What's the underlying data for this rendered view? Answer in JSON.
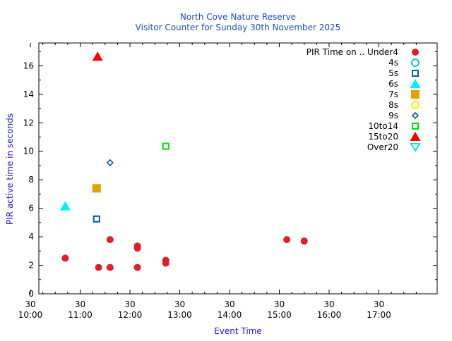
{
  "chart_data": {
    "type": "scatter",
    "title": "North Cove Nature Reserve",
    "subtitle": "Visitor Counter for Sunday 30th November 2025",
    "xlabel": "Event Time",
    "ylabel": "PIR active time in seconds",
    "xlim": [
      9.67,
      17.67
    ],
    "ylim": [
      0,
      17.6
    ],
    "yticks": [
      0,
      2,
      4,
      6,
      8,
      10,
      12,
      14,
      16
    ],
    "xticks": [
      {
        "x": 9.5,
        "top": "30",
        "bottom": "10:00"
      },
      {
        "x": 10.5,
        "top": "30",
        "bottom": "11:00"
      },
      {
        "x": 11.5,
        "top": "30",
        "bottom": "12:00"
      },
      {
        "x": 12.5,
        "top": "30",
        "bottom": "13:00"
      },
      {
        "x": 13.5,
        "top": "30",
        "bottom": "14:00"
      },
      {
        "x": 14.5,
        "top": "30",
        "bottom": "15:00"
      },
      {
        "x": 15.5,
        "top": "30",
        "bottom": "16:00"
      },
      {
        "x": 16.5,
        "top": "30",
        "bottom": "17:00"
      }
    ],
    "legend_position": "top-right",
    "series": [
      {
        "name": "PIR Time on .. Under4",
        "marker": "circle-filled",
        "color": "#dd1f2a",
        "points": [
          [
            10.2,
            2.5
          ],
          [
            10.87,
            1.85
          ],
          [
            11.1,
            1.85
          ],
          [
            11.1,
            3.8
          ],
          [
            11.65,
            1.85
          ],
          [
            11.65,
            3.2
          ],
          [
            11.65,
            3.35
          ],
          [
            12.22,
            2.15
          ],
          [
            12.22,
            2.35
          ],
          [
            14.65,
            3.8
          ],
          [
            15.0,
            3.7
          ]
        ]
      },
      {
        "name": "4s",
        "marker": "circle-open",
        "color": "#00c8e6",
        "points": []
      },
      {
        "name": "5s",
        "marker": "square-open",
        "color": "#005fa0",
        "points": [
          [
            10.83,
            5.25
          ]
        ]
      },
      {
        "name": "6s",
        "marker": "triangle-up-filled",
        "color": "#00f0ff",
        "points": [
          [
            10.2,
            6.15
          ]
        ]
      },
      {
        "name": "7s",
        "marker": "square-filled",
        "color": "#e8a000",
        "points": [
          [
            10.83,
            7.4
          ]
        ]
      },
      {
        "name": "8s",
        "marker": "circle-open",
        "color": "#ffee00",
        "points": []
      },
      {
        "name": "9s",
        "marker": "diamond-open",
        "color": "#005fa0",
        "points": [
          [
            11.1,
            9.2
          ]
        ]
      },
      {
        "name": "10to14",
        "marker": "square-open",
        "color": "#00e000",
        "points": [
          [
            12.22,
            10.35
          ]
        ]
      },
      {
        "name": "15to20",
        "marker": "triangle-up-filled",
        "color": "#ff0000",
        "points": [
          [
            10.85,
            16.65
          ]
        ]
      },
      {
        "name": "Over20",
        "marker": "triangle-down-open",
        "color": "#00e6e6",
        "points": []
      }
    ]
  }
}
